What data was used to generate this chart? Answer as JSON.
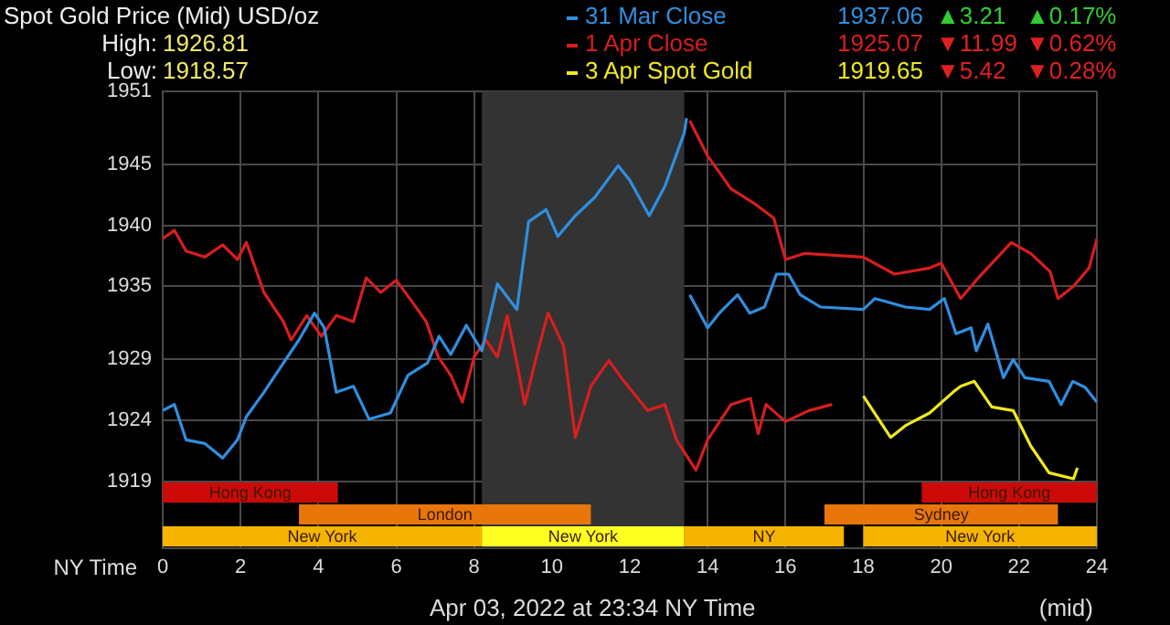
{
  "chart_data": {
    "type": "line",
    "title": "Spot Gold Price (Mid) USD/oz",
    "xlabel": "NY Time",
    "xlim": [
      0,
      24
    ],
    "xticks": [
      0,
      2,
      4,
      6,
      8,
      10,
      12,
      14,
      16,
      18,
      20,
      22,
      24
    ],
    "ylim": [
      1913.5,
      1951
    ],
    "yticks": [
      1919,
      1924,
      1929,
      1935,
      1940,
      1945,
      1951
    ],
    "grid": true,
    "legend": "top right",
    "marker": "none",
    "line_style": "solid",
    "series": [
      {
        "name": "31 Mar Close",
        "color": "#2f8fe0",
        "x": [
          0,
          0.3,
          0.6,
          1.08,
          1.54,
          1.92,
          2.15,
          2.6,
          3.1,
          3.5,
          3.9,
          4.15,
          4.46,
          4.9,
          5.3,
          5.85,
          6.3,
          6.8,
          7.1,
          7.4,
          7.8,
          8.2,
          8.6,
          9.1,
          9.4,
          9.85,
          10.15,
          10.6,
          11.1,
          11.7,
          12,
          12.5,
          12.9,
          13.4,
          13.46,
          13.5,
          13.54,
          14,
          14.3,
          14.77,
          15.08,
          15.46,
          15.77,
          16.08,
          16.38,
          16.9,
          18,
          18.3,
          19.08,
          19.7,
          20.08,
          20.38,
          20.77,
          20.9,
          21.2,
          21.6,
          21.85,
          22.15,
          22.77,
          23.08,
          23.38,
          23.7,
          24
        ],
        "values": [
          1924.8,
          1925.3,
          1922.4,
          1922.1,
          1920.9,
          1922.4,
          1924.3,
          1926.3,
          1928.7,
          1930.6,
          1932.8,
          1931.6,
          1926.3,
          1926.8,
          1924.1,
          1924.6,
          1927.7,
          1928.7,
          1930.9,
          1929.4,
          1931.8,
          1929.7,
          1935.2,
          1933.1,
          1940.3,
          1941.3,
          1939.1,
          1940.8,
          1942.3,
          1944.9,
          1943.7,
          1940.8,
          1943.2,
          1947.6,
          1948.8,
          null,
          1934.3,
          1931.6,
          1932.8,
          1934.3,
          1932.8,
          1933.3,
          1936,
          1936,
          1934.3,
          1933.3,
          1933.1,
          1934,
          1933.3,
          1933.1,
          1934,
          1931.1,
          1931.6,
          1929.7,
          1931.9,
          1927.5,
          1929,
          1927.5,
          1927.2,
          1925.3,
          1927.2,
          1926.7,
          1925.5
        ]
      },
      {
        "name": "1 Apr Close",
        "color": "#d81e1e",
        "x": [
          0,
          0.3,
          0.6,
          1.08,
          1.54,
          1.92,
          2.15,
          2.6,
          3.1,
          3.3,
          3.7,
          4.08,
          4.46,
          4.9,
          5.23,
          5.6,
          6,
          6.46,
          6.77,
          7.08,
          7.4,
          7.7,
          8,
          8.3,
          8.6,
          8.85,
          9.1,
          9.3,
          9.6,
          9.9,
          10.3,
          10.6,
          11,
          11.46,
          11.85,
          12.46,
          12.9,
          13.2,
          13.7,
          14,
          14.6,
          15.1,
          15.3,
          15.5,
          16,
          16.6,
          17.2
        ],
        "values": [
          1938.9,
          1939.6,
          1937.9,
          1937.4,
          1938.4,
          1937.2,
          1938.6,
          1934.5,
          1932.1,
          1930.6,
          1932.6,
          1930.9,
          1932.6,
          1932.1,
          1935.7,
          1934.5,
          1935.5,
          1933.5,
          1932.1,
          1929.2,
          1927.7,
          1925.5,
          1929.2,
          1930.6,
          1929.2,
          1932.6,
          1928.7,
          1925.3,
          1929.2,
          1932.8,
          1930.1,
          1922.6,
          1926.8,
          1928.9,
          1927.2,
          1924.8,
          1925.3,
          1922.4,
          1919.9,
          1922.4,
          1925.3,
          1925.8,
          1922.9,
          1925.3,
          1923.9,
          1924.8,
          1925.3
        ]
      },
      {
        "name": "3 Apr Spot Gold",
        "color": "#f0e81e",
        "x": [
          18,
          18.7,
          19.1,
          19.7,
          20.3,
          20.5,
          20.85,
          21.3,
          21.85,
          22.3,
          22.77,
          23.4,
          23.5
        ],
        "values": [
          1926,
          1922.6,
          1923.6,
          1924.6,
          1926.3,
          1926.8,
          1927.2,
          1925.1,
          1924.8,
          1921.9,
          1919.7,
          1919.2,
          1920.1
        ]
      },
      {
        "color": "#d81e1e",
        "x": [
          13.54,
          14,
          14.6,
          15.2,
          15.7,
          16,
          16.5,
          18,
          18.8,
          19.7,
          20,
          20.5,
          20.9,
          21.8,
          22.3,
          22.8,
          23,
          23.4,
          23.8,
          24
        ],
        "values": [
          1948.6,
          1945.7,
          1943,
          1941.8,
          1940.6,
          1937.2,
          1937.7,
          1937.4,
          1936,
          1936.5,
          1936.9,
          1934,
          1935.5,
          1938.6,
          1937.7,
          1936.2,
          1934,
          1935,
          1936.5,
          1938.9
        ]
      }
    ],
    "bands": [
      {
        "axis": "x",
        "from": 8.2,
        "to": 13.4,
        "color": "#333333"
      },
      {
        "axis": "x",
        "from": 0,
        "to": 8.2,
        "label": "New York",
        "color": "#f5b400"
      },
      {
        "axis": "x",
        "from": 8.2,
        "to": 13.4,
        "label": "New York",
        "color": "#ffff22"
      },
      {
        "axis": "x",
        "from": 13.4,
        "to": 17.5,
        "label": "NY",
        "color": "#f5b400"
      },
      {
        "axis": "x",
        "from": 18,
        "to": 24,
        "label": "New York",
        "color": "#f5b400"
      },
      {
        "axis": "x",
        "from": 3.5,
        "to": 11,
        "label": "London",
        "color": "#e8760a"
      },
      {
        "axis": "x",
        "from": 17,
        "to": 23,
        "label": "Sydney",
        "color": "#e8760a"
      },
      {
        "axis": "x",
        "from": 0,
        "to": 4.5,
        "label": "Hong Kong",
        "color": "#cc0a0a"
      },
      {
        "axis": "x",
        "from": 19.5,
        "to": 24,
        "label": "Hong Kong",
        "color": "#cc0a0a"
      }
    ],
    "annotations": [
      "High:",
      "1926.81",
      "Low:",
      "1918.57",
      "1937.06",
      "▲3.21",
      "▲0.17%",
      "1925.07",
      "▼11.99",
      "▼0.62%",
      "1919.65",
      "▼5.42",
      "▼0.28%",
      "Apr 03, 2022 at 23:34 NY Time",
      "(mid)"
    ]
  }
}
